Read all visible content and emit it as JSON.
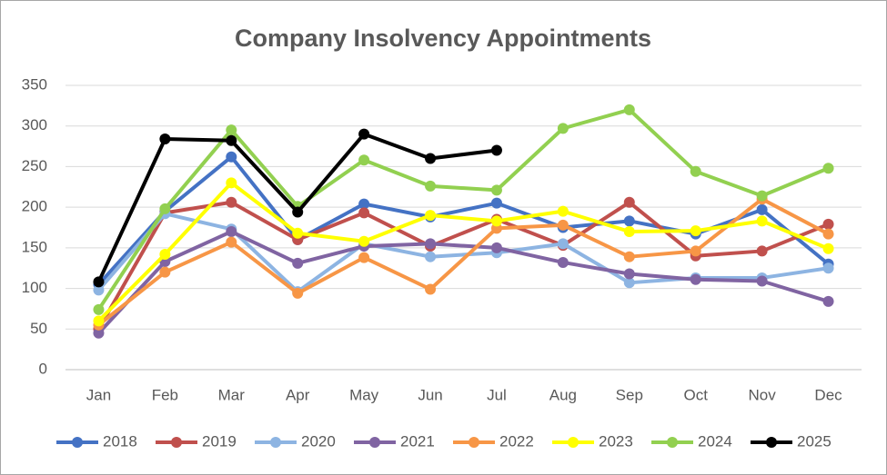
{
  "chart_data": {
    "type": "line",
    "title": "Company Insolvency Appointments",
    "categories": [
      "Jan",
      "Feb",
      "Mar",
      "Apr",
      "May",
      "Jun",
      "Jul",
      "Aug",
      "Sep",
      "Oct",
      "Nov",
      "Dec"
    ],
    "series": [
      {
        "name": "2018",
        "color": "#4472c4",
        "values": [
          105,
          195,
          262,
          160,
          204,
          188,
          205,
          175,
          183,
          167,
          197,
          130
        ]
      },
      {
        "name": "2019",
        "color": "#c0504d",
        "values": [
          50,
          193,
          206,
          160,
          193,
          152,
          185,
          153,
          206,
          140,
          146,
          179
        ]
      },
      {
        "name": "2020",
        "color": "#8db4e2",
        "values": [
          98,
          192,
          173,
          96,
          155,
          139,
          144,
          155,
          107,
          113,
          113,
          125
        ]
      },
      {
        "name": "2021",
        "color": "#8064a2",
        "values": [
          45,
          133,
          170,
          131,
          152,
          155,
          150,
          132,
          118,
          111,
          109,
          84
        ]
      },
      {
        "name": "2022",
        "color": "#f79646",
        "values": [
          55,
          120,
          157,
          94,
          138,
          99,
          174,
          178,
          139,
          146,
          210,
          167
        ]
      },
      {
        "name": "2023",
        "color": "#ffff00",
        "values": [
          60,
          142,
          230,
          168,
          158,
          190,
          183,
          195,
          170,
          171,
          183,
          149
        ]
      },
      {
        "name": "2024",
        "color": "#92d050",
        "values": [
          74,
          198,
          295,
          201,
          258,
          226,
          221,
          297,
          320,
          244,
          214,
          248
        ]
      },
      {
        "name": "2025",
        "color": "#000000",
        "values": [
          108,
          284,
          282,
          194,
          290,
          260,
          270,
          null,
          null,
          null,
          null,
          null
        ]
      }
    ],
    "ylim": [
      0,
      350
    ],
    "yticks": [
      0,
      50,
      100,
      150,
      200,
      250,
      300,
      350
    ],
    "grid": true,
    "legend": "bottom"
  }
}
